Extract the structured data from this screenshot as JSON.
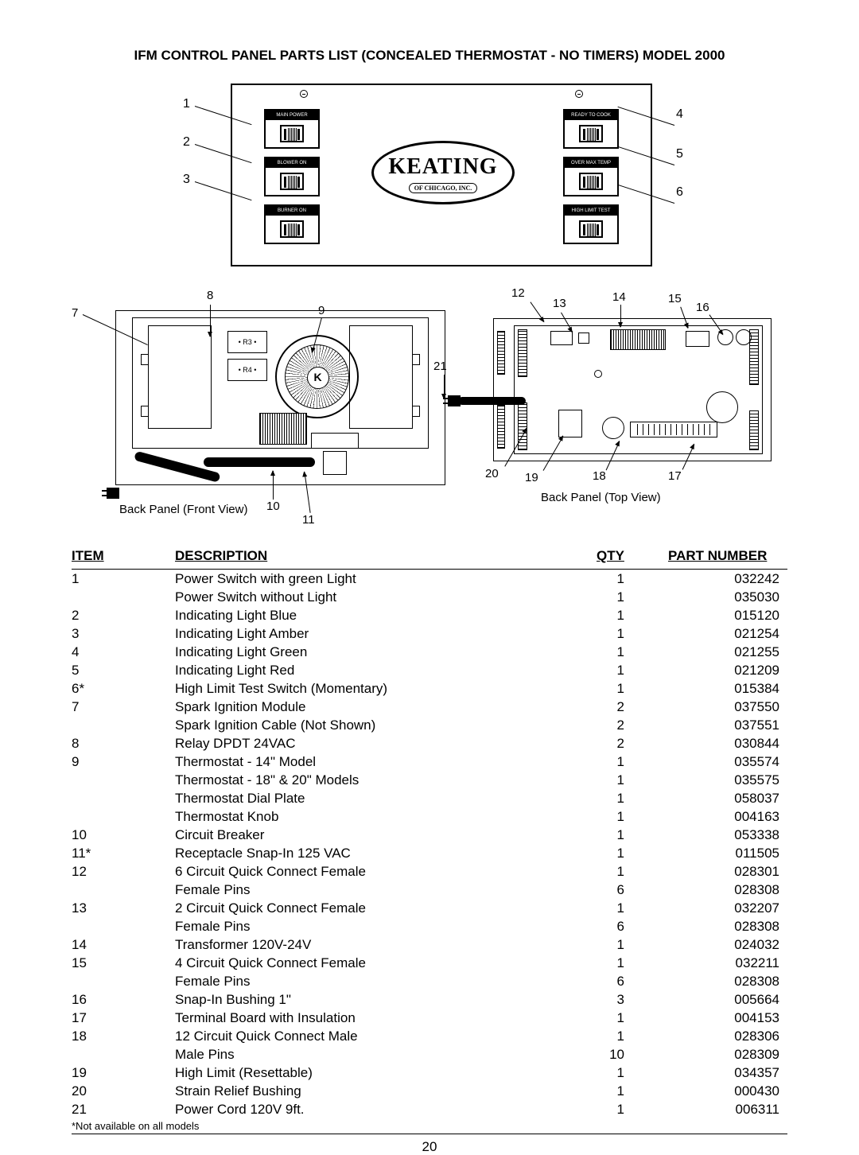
{
  "title": "IFM CONTROL PANEL PARTS LIST (CONCEALED THERMOSTAT - NO TIMERS) MODEL 2000",
  "logo": {
    "name": "KEATING",
    "sub": "OF CHICAGO, INC."
  },
  "front_switch_labels": [
    "MAIN POWER",
    "BLOWER ON",
    "BURNER ON",
    "READY TO COOK",
    "OVER MAX TEMP",
    "HIGH LIMIT TEST"
  ],
  "top_callouts": {
    "c1": "1",
    "c2": "2",
    "c3": "3",
    "c4": "4",
    "c5": "5",
    "c6": "6"
  },
  "bf": {
    "caption": "Back Panel (Front View)",
    "c7": "7",
    "c8": "8",
    "c9": "9",
    "c10": "10",
    "c11": "11"
  },
  "bt": {
    "caption": "Back Panel (Top View)",
    "c12": "12",
    "c13": "13",
    "c14": "14",
    "c15": "15",
    "c16": "16",
    "c17": "17",
    "c18": "18",
    "c19": "19",
    "c20": "20",
    "c21": "21"
  },
  "headers": {
    "item": "ITEM",
    "desc": "DESCRIPTION",
    "qty": "QTY",
    "pn": "PART NUMBER"
  },
  "rows": [
    {
      "item": "1",
      "desc": "Power Switch with green Light",
      "qty": "1",
      "pn": "032242"
    },
    {
      "item": "",
      "desc": "Power Switch without Light",
      "qty": "1",
      "pn": "035030"
    },
    {
      "item": "2",
      "desc": "Indicating Light Blue",
      "qty": "1",
      "pn": "015120"
    },
    {
      "item": "3",
      "desc": "Indicating Light Amber",
      "qty": "1",
      "pn": "021254"
    },
    {
      "item": "4",
      "desc": "Indicating Light Green",
      "qty": "1",
      "pn": "021255"
    },
    {
      "item": "5",
      "desc": "Indicating Light Red",
      "qty": "1",
      "pn": "021209"
    },
    {
      "item": "6*",
      "desc": "High Limit Test Switch (Momentary)",
      "qty": "1",
      "pn": "015384"
    },
    {
      "item": "7",
      "desc": "Spark Ignition Module",
      "qty": "2",
      "pn": "037550"
    },
    {
      "item": "",
      "desc": "Spark Ignition Cable (Not Shown)",
      "qty": "2",
      "pn": "037551"
    },
    {
      "item": "8",
      "desc": "Relay DPDT 24VAC",
      "qty": "2",
      "pn": "030844"
    },
    {
      "item": "9",
      "desc": "Thermostat - 14\" Model",
      "qty": "1",
      "pn": "035574"
    },
    {
      "item": "",
      "desc": "Thermostat - 18\" & 20\" Models",
      "qty": "1",
      "pn": "035575"
    },
    {
      "item": "",
      "desc": "Thermostat Dial Plate",
      "qty": "1",
      "pn": "058037"
    },
    {
      "item": "",
      "desc": "Thermostat Knob",
      "qty": "1",
      "pn": "004163"
    },
    {
      "item": "10",
      "desc": "Circuit Breaker",
      "qty": "1",
      "pn": "053338"
    },
    {
      "item": "11*",
      "desc": "Receptacle Snap-In 125 VAC",
      "qty": "1",
      "pn": "011505"
    },
    {
      "item": "12",
      "desc": "6 Circuit Quick Connect Female",
      "qty": "1",
      "pn": "028301"
    },
    {
      "item": "",
      "desc": "Female Pins",
      "qty": "6",
      "pn": "028308"
    },
    {
      "item": "13",
      "desc": "2 Circuit Quick Connect Female",
      "qty": "1",
      "pn": "032207"
    },
    {
      "item": "",
      "desc": "Female Pins",
      "qty": "6",
      "pn": "028308"
    },
    {
      "item": "14",
      "desc": "Transformer 120V-24V",
      "qty": "1",
      "pn": "024032"
    },
    {
      "item": "15",
      "desc": "4 Circuit Quick Connect Female",
      "qty": "1",
      "pn": "032211"
    },
    {
      "item": "",
      "desc": "Female Pins",
      "qty": "6",
      "pn": "028308"
    },
    {
      "item": "16",
      "desc": "Snap-In Bushing 1\"",
      "qty": "3",
      "pn": "005664"
    },
    {
      "item": "17",
      "desc": "Terminal Board with Insulation",
      "qty": "1",
      "pn": "004153"
    },
    {
      "item": "18",
      "desc": "12 Circuit Quick Connect Male",
      "qty": "1",
      "pn": "028306"
    },
    {
      "item": "",
      "desc": "Male Pins",
      "qty": "10",
      "pn": "028309"
    },
    {
      "item": "19",
      "desc": "High Limit (Resettable)",
      "qty": "1",
      "pn": "034357"
    },
    {
      "item": "20",
      "desc": "Strain Relief Bushing",
      "qty": "1",
      "pn": "000430"
    },
    {
      "item": "21",
      "desc": "Power Cord 120V 9ft.",
      "qty": "1",
      "pn": "006311"
    }
  ],
  "footnote": "*Not available on all models",
  "page_number": "20"
}
